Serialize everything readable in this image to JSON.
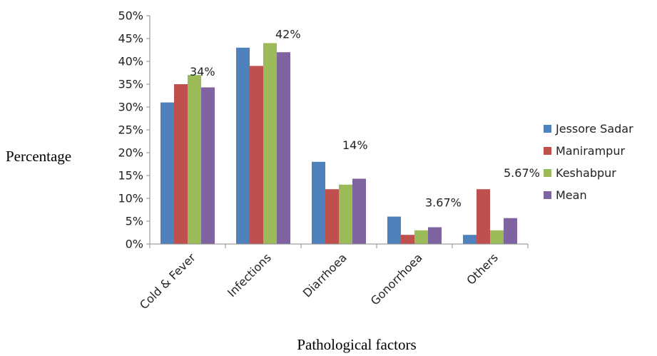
{
  "chart_data": {
    "type": "bar",
    "title": "",
    "xlabel": "Pathological factors",
    "ylabel": "Percentage",
    "ylim": [
      0,
      50
    ],
    "y_ticks": [
      "0%",
      "5%",
      "10%",
      "15%",
      "20%",
      "25%",
      "30%",
      "35%",
      "40%",
      "45%",
      "50%"
    ],
    "categories": [
      "Cold & Fever",
      "Infections",
      "Diarrhoea",
      "Gonorrhoea",
      "Others"
    ],
    "series": [
      {
        "name": "Jessore Sadar",
        "color": "#4f81bd",
        "values": [
          31,
          43,
          18,
          6,
          2
        ]
      },
      {
        "name": "Manirampur",
        "color": "#c0504d",
        "values": [
          35,
          39,
          12,
          2,
          12
        ]
      },
      {
        "name": "Keshabpur",
        "color": "#9bbb59",
        "values": [
          37,
          44,
          13,
          3,
          3
        ]
      },
      {
        "name": "Mean",
        "color": "#8064a2",
        "values": [
          34.3,
          42,
          14.3,
          3.67,
          5.67
        ]
      }
    ],
    "data_labels": [
      "34%",
      "42%",
      "14%",
      "3.67%",
      "5.67%"
    ],
    "grid": false,
    "legend_position": "right"
  }
}
